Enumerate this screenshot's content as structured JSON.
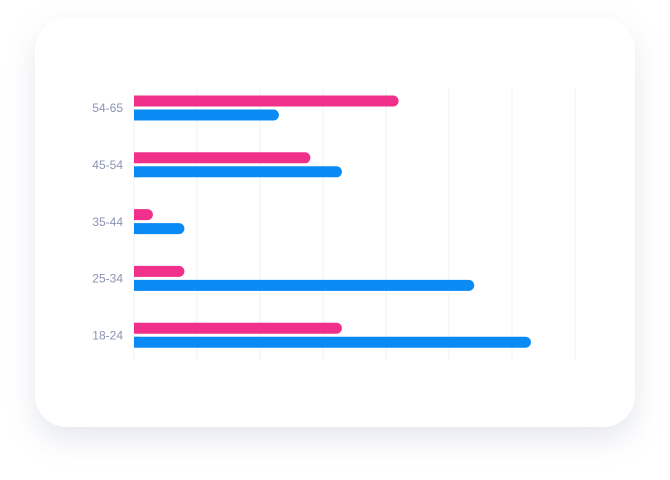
{
  "chart_data": {
    "type": "hbar",
    "categories": [
      "54-65",
      "45-54",
      "35-44",
      "25-34",
      "18-24"
    ],
    "series": [
      {
        "color": "#f0308a",
        "values": [
          4.2,
          2.8,
          0.3,
          0.8,
          3.3
        ]
      },
      {
        "color": "#0a8af5",
        "values": [
          2.3,
          3.3,
          0.8,
          5.4,
          6.3
        ]
      }
    ],
    "xlim": [
      0,
      7
    ],
    "xticks": [
      0,
      1,
      2,
      3,
      4,
      5,
      6,
      7
    ],
    "grid": true
  }
}
